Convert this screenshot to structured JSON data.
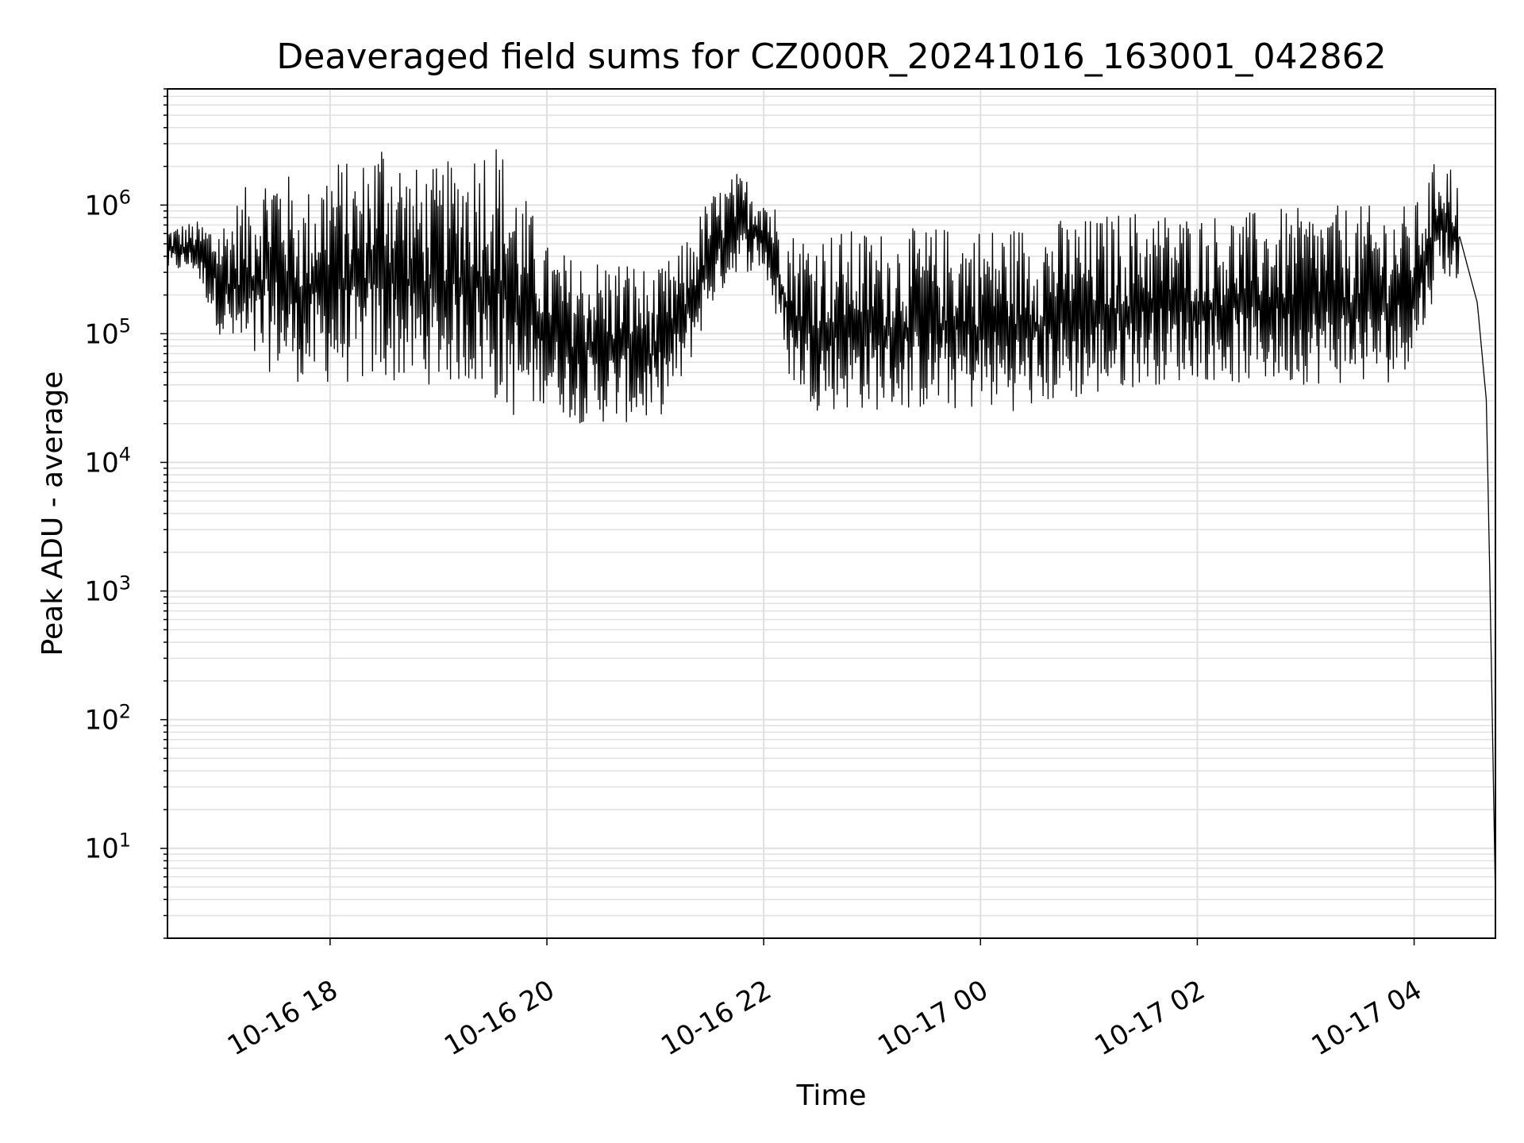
{
  "chart_data": {
    "type": "line",
    "title": "Deaveraged field sums for CZ000R_20241016_163001_042862",
    "xlabel": "Time",
    "ylabel": "Peak ADU - average",
    "yscale": "log",
    "ylim": [
      2,
      8000000
    ],
    "xlim": [
      "2024-10-16 16:30",
      "2024-10-17 04:45"
    ],
    "grid": true,
    "line_color": "#000000",
    "grid_color": "#e0e0e0",
    "x_tick_labels": [
      "10-16 18",
      "10-16 20",
      "10-16 22",
      "10-17 00",
      "10-17 02",
      "10-17 04"
    ],
    "y_tick_labels": [
      {
        "base": "10",
        "exp": "1"
      },
      {
        "base": "10",
        "exp": "2"
      },
      {
        "base": "10",
        "exp": "3"
      },
      {
        "base": "10",
        "exp": "4"
      },
      {
        "base": "10",
        "exp": "5"
      },
      {
        "base": "10",
        "exp": "6"
      }
    ],
    "series": [
      {
        "x": [
          "2024-10-16 16:30",
          "2024-10-16 16:45",
          "2024-10-16 17:00",
          "2024-10-16 17:15",
          "2024-10-16 17:30",
          "2024-10-16 17:45",
          "2024-10-16 18:00",
          "2024-10-16 18:15",
          "2024-10-16 18:30",
          "2024-10-16 18:45",
          "2024-10-16 19:00",
          "2024-10-16 19:15",
          "2024-10-16 19:30",
          "2024-10-16 19:45",
          "2024-10-16 20:00",
          "2024-10-16 20:15",
          "2024-10-16 20:30",
          "2024-10-16 20:45",
          "2024-10-16 21:00",
          "2024-10-16 21:15",
          "2024-10-16 21:30",
          "2024-10-16 21:45",
          "2024-10-16 22:00",
          "2024-10-16 22:15",
          "2024-10-16 22:30",
          "2024-10-16 22:45",
          "2024-10-16 23:00",
          "2024-10-16 23:15",
          "2024-10-16 23:30",
          "2024-10-16 23:45",
          "2024-10-17 00:00",
          "2024-10-17 00:15",
          "2024-10-17 00:30",
          "2024-10-17 00:45",
          "2024-10-17 01:00",
          "2024-10-17 01:15",
          "2024-10-17 01:30",
          "2024-10-17 01:45",
          "2024-10-17 02:00",
          "2024-10-17 02:15",
          "2024-10-17 02:30",
          "2024-10-17 02:45",
          "2024-10-17 03:00",
          "2024-10-17 03:15",
          "2024-10-17 03:30",
          "2024-10-17 03:45",
          "2024-10-17 04:00",
          "2024-10-17 04:15",
          "2024-10-17 04:25",
          "2024-10-17 04:35",
          "2024-10-17 04:40",
          "2024-10-17 04:42",
          "2024-10-17 04:45"
        ],
        "high": [
          700000,
          750000,
          800000,
          1500000,
          2500000,
          1200000,
          2600000,
          2000000,
          4300000,
          2000000,
          2000000,
          2700000,
          4000000,
          1500000,
          500000,
          400000,
          400000,
          400000,
          300000,
          500000,
          1200000,
          1800000,
          1500000,
          650000,
          650000,
          650000,
          650000,
          650000,
          680000,
          700000,
          700000,
          700000,
          750000,
          800000,
          800000,
          900000,
          950000,
          900000,
          850000,
          900000,
          900000,
          950000,
          950000,
          1000000,
          1000000,
          1000000,
          1000000,
          2800000,
          1700000,
          300000,
          60000,
          1300,
          4
        ],
        "low": [
          300000,
          300000,
          90000,
          50000,
          50000,
          40000,
          40000,
          40000,
          40000,
          40000,
          40000,
          40000,
          30000,
          20000,
          30000,
          20000,
          20000,
          20000,
          20000,
          40000,
          150000,
          300000,
          300000,
          40000,
          25000,
          25000,
          25000,
          25000,
          25000,
          25000,
          25000,
          25000,
          25000,
          30000,
          30000,
          35000,
          40000,
          40000,
          45000,
          40000,
          40000,
          40000,
          40000,
          40000,
          40000,
          40000,
          60000,
          300000,
          200000,
          100000,
          15000,
          900,
          4
        ]
      }
    ]
  }
}
